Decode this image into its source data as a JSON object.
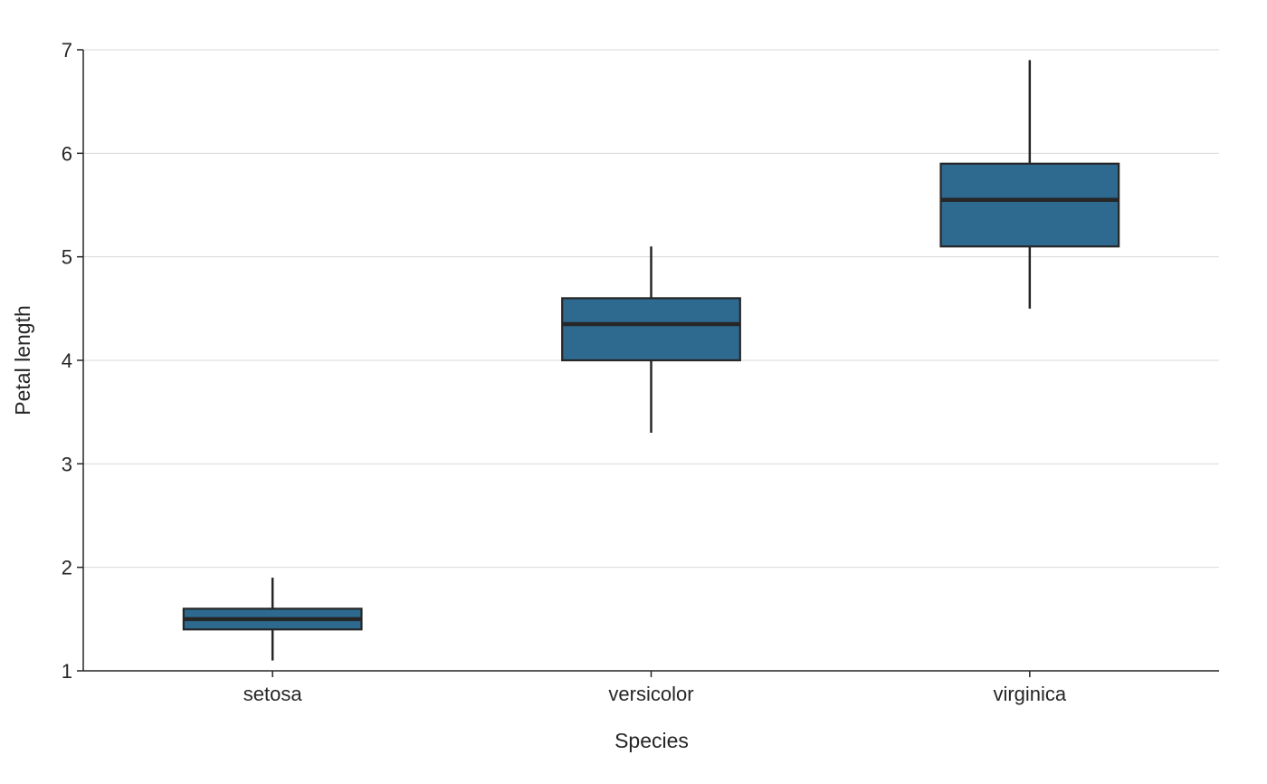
{
  "chart_data": {
    "type": "box",
    "title": "",
    "xlabel": "Species",
    "ylabel": "Petal length",
    "ylim": [
      1,
      7
    ],
    "yticks": [
      "1",
      "2",
      "3",
      "4",
      "5",
      "6",
      "7"
    ],
    "categories": [
      "setosa",
      "versicolor",
      "virginica"
    ],
    "boxes": [
      {
        "category": "setosa",
        "whisker_low": 1.1,
        "q1": 1.4,
        "median": 1.5,
        "q3": 1.6,
        "whisker_high": 1.9
      },
      {
        "category": "versicolor",
        "whisker_low": 3.3,
        "q1": 4.0,
        "median": 4.35,
        "q3": 4.6,
        "whisker_high": 5.1
      },
      {
        "category": "virginica",
        "whisker_low": 4.5,
        "q1": 5.1,
        "median": 5.55,
        "q3": 5.9,
        "whisker_high": 6.9
      }
    ],
    "grid": "horizontal",
    "legend": "none",
    "colors": {
      "box_fill": "#2e6a8f",
      "box_edge": "#262626",
      "grid": "#d9d9d9",
      "axis": "#262626"
    }
  }
}
